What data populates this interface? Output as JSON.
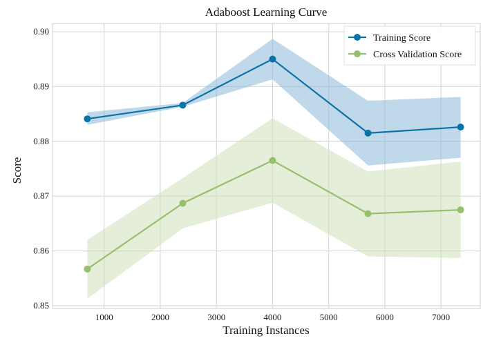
{
  "chart_data": {
    "type": "line",
    "title": "Adaboost Learning Curve",
    "xlabel": "Training Instances",
    "ylabel": "Score",
    "xlim": [
      80,
      7700
    ],
    "ylim": [
      0.8495,
      0.9015
    ],
    "xticks": [
      1000,
      2000,
      3000,
      4000,
      5000,
      6000,
      7000
    ],
    "yticks": [
      0.85,
      0.86,
      0.87,
      0.88,
      0.89,
      0.9
    ],
    "xtick_labels": [
      "1000",
      "2000",
      "3000",
      "4000",
      "5000",
      "6000",
      "7000"
    ],
    "ytick_labels": [
      "0.85",
      "0.86",
      "0.87",
      "0.88",
      "0.89",
      "0.90"
    ],
    "grid": true,
    "legend_position": "top-right",
    "x": [
      700,
      2400,
      4000,
      5700,
      7350
    ],
    "series": [
      {
        "name": "Training Score",
        "color": "#0d72a6",
        "band_color": "#7fb3d5",
        "values": [
          0.8841,
          0.8866,
          0.895,
          0.8815,
          0.8826
        ],
        "upper": [
          0.8853,
          0.887,
          0.8987,
          0.8874,
          0.8881
        ],
        "lower": [
          0.883,
          0.8863,
          0.8913,
          0.8756,
          0.877
        ]
      },
      {
        "name": "Cross Validation Score",
        "color": "#96bf6e",
        "band_color": "#cfe0b8",
        "values": [
          0.8567,
          0.8687,
          0.8765,
          0.8668,
          0.8675
        ],
        "upper": [
          0.862,
          0.8733,
          0.8842,
          0.8745,
          0.8763
        ],
        "lower": [
          0.8513,
          0.8641,
          0.8688,
          0.859,
          0.8587
        ]
      }
    ]
  }
}
